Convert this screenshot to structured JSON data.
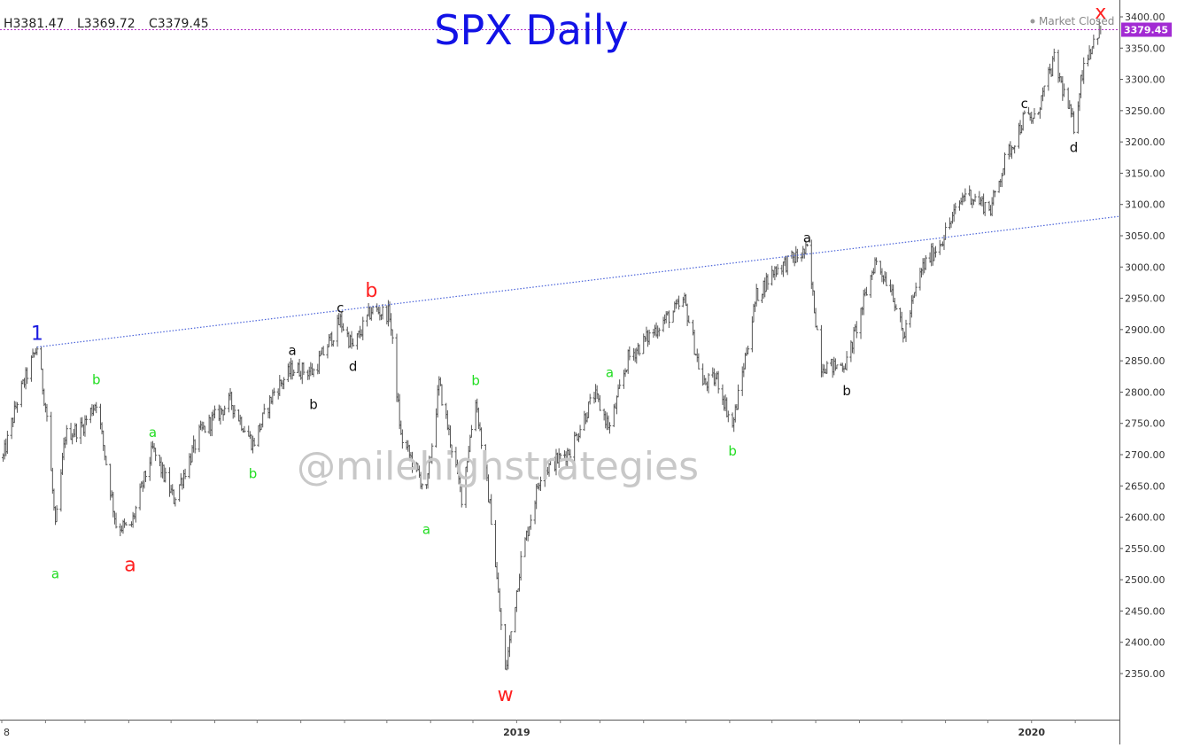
{
  "ohlc_readout": {
    "high": "H3381.47",
    "low": "L3369.72",
    "close": "C3379.45"
  },
  "status": "Market Closed",
  "watermark": "@milehighstrategies",
  "colors": {
    "title": "#1212e6",
    "bar": "#555555",
    "trendline": "#4a63d9",
    "price_line": "#b42fc4",
    "price_tag": "#a22bd3",
    "wave_red": "#ff2020",
    "wave_green": "#22dd22",
    "wave_black": "#111111",
    "wave_blue": "#1a1ae0",
    "watermark": "#c8c8c8"
  },
  "chart_data": {
    "type": "line",
    "title": "SPX Daily",
    "y_ticks": [
      "2350.00",
      "2400.00",
      "2450.00",
      "2500.00",
      "2550.00",
      "2600.00",
      "2650.00",
      "2700.00",
      "2750.00",
      "2800.00",
      "2850.00",
      "2900.00",
      "2950.00",
      "3000.00",
      "3050.00",
      "3100.00",
      "3150.00",
      "3200.00",
      "3250.00",
      "3300.00",
      "3350.00",
      "3400.00"
    ],
    "ylim": [
      2320,
      3425
    ],
    "x_range": [
      "2018-01-01",
      "2020-02-21"
    ],
    "x_ticks": [
      {
        "label": "8",
        "date": "2018-01-01"
      },
      {
        "label": "2019",
        "date": "2019-01-01"
      },
      {
        "label": "2020",
        "date": "2020-01-01"
      }
    ],
    "last_price": {
      "label": "3379.45",
      "value": 3379.45
    },
    "series": [
      {
        "style": "ohlc-bars",
        "points": [
          {
            "x": "2018-01-02",
            "y": 2695
          },
          {
            "x": "2018-01-12",
            "y": 2786
          },
          {
            "x": "2018-01-26",
            "y": 2872
          },
          {
            "x": "2018-02-02",
            "y": 2762
          },
          {
            "x": "2018-02-08",
            "y": 2581
          },
          {
            "x": "2018-02-15",
            "y": 2731
          },
          {
            "x": "2018-02-27",
            "y": 2744
          },
          {
            "x": "2018-03-09",
            "y": 2786
          },
          {
            "x": "2018-03-23",
            "y": 2588
          },
          {
            "x": "2018-04-02",
            "y": 2581
          },
          {
            "x": "2018-04-18",
            "y": 2708
          },
          {
            "x": "2018-05-03",
            "y": 2629
          },
          {
            "x": "2018-05-21",
            "y": 2733
          },
          {
            "x": "2018-06-12",
            "y": 2786
          },
          {
            "x": "2018-06-28",
            "y": 2717
          },
          {
            "x": "2018-07-13",
            "y": 2801
          },
          {
            "x": "2018-07-26",
            "y": 2837
          },
          {
            "x": "2018-08-10",
            "y": 2833
          },
          {
            "x": "2018-08-29",
            "y": 2914
          },
          {
            "x": "2018-09-07",
            "y": 2871
          },
          {
            "x": "2018-09-20",
            "y": 2931
          },
          {
            "x": "2018-10-03",
            "y": 2925
          },
          {
            "x": "2018-10-11",
            "y": 2728
          },
          {
            "x": "2018-10-29",
            "y": 2641
          },
          {
            "x": "2018-11-07",
            "y": 2813
          },
          {
            "x": "2018-11-23",
            "y": 2633
          },
          {
            "x": "2018-12-03",
            "y": 2790
          },
          {
            "x": "2018-12-14",
            "y": 2600
          },
          {
            "x": "2018-12-24",
            "y": 2351
          },
          {
            "x": "2019-01-04",
            "y": 2531
          },
          {
            "x": "2019-01-18",
            "y": 2670
          },
          {
            "x": "2019-02-08",
            "y": 2708
          },
          {
            "x": "2019-02-25",
            "y": 2796
          },
          {
            "x": "2019-03-08",
            "y": 2743
          },
          {
            "x": "2019-03-21",
            "y": 2854
          },
          {
            "x": "2019-04-12",
            "y": 2907
          },
          {
            "x": "2019-04-30",
            "y": 2945
          },
          {
            "x": "2019-05-13",
            "y": 2812
          },
          {
            "x": "2019-05-23",
            "y": 2822
          },
          {
            "x": "2019-06-03",
            "y": 2744
          },
          {
            "x": "2019-06-20",
            "y": 2954
          },
          {
            "x": "2019-07-03",
            "y": 2996
          },
          {
            "x": "2019-07-26",
            "y": 3026
          },
          {
            "x": "2019-08-05",
            "y": 2844
          },
          {
            "x": "2019-08-14",
            "y": 2840
          },
          {
            "x": "2019-08-23",
            "y": 2847
          },
          {
            "x": "2019-09-12",
            "y": 3009
          },
          {
            "x": "2019-09-24",
            "y": 2966
          },
          {
            "x": "2019-10-02",
            "y": 2887
          },
          {
            "x": "2019-10-15",
            "y": 2996
          },
          {
            "x": "2019-10-30",
            "y": 3046
          },
          {
            "x": "2019-11-15",
            "y": 3120
          },
          {
            "x": "2019-12-03",
            "y": 3093
          },
          {
            "x": "2019-12-13",
            "y": 3169
          },
          {
            "x": "2019-12-27",
            "y": 3240
          },
          {
            "x": "2020-01-03",
            "y": 3235
          },
          {
            "x": "2020-01-17",
            "y": 3330
          },
          {
            "x": "2020-01-31",
            "y": 3225
          },
          {
            "x": "2020-02-07",
            "y": 3327
          },
          {
            "x": "2020-02-19",
            "y": 3386
          }
        ]
      }
    ],
    "trendlines": [
      {
        "style": "dotted",
        "from": {
          "x": "2018-01-26",
          "y": 2872
        },
        "to": {
          "x": "2020-02-21",
          "y": 3081
        }
      }
    ],
    "annotations": [
      {
        "text": "1",
        "tone": "blue",
        "size": "large",
        "x": "2018-01-26",
        "y": 2872,
        "pos": "above"
      },
      {
        "text": "a",
        "tone": "green",
        "size": "small",
        "x": "2018-02-08",
        "y": 2532,
        "pos": "below"
      },
      {
        "text": "b",
        "tone": "green",
        "size": "small",
        "x": "2018-03-09",
        "y": 2801,
        "pos": "above"
      },
      {
        "text": "a",
        "tone": "red",
        "size": "large",
        "x": "2018-04-02",
        "y": 2553,
        "pos": "below"
      },
      {
        "text": "a",
        "tone": "green",
        "size": "small",
        "x": "2018-04-18",
        "y": 2717,
        "pos": "above"
      },
      {
        "text": "b",
        "tone": "green",
        "size": "small",
        "x": "2018-06-28",
        "y": 2692,
        "pos": "below"
      },
      {
        "text": "a",
        "tone": "black",
        "size": "small",
        "x": "2018-07-26",
        "y": 2848,
        "pos": "above"
      },
      {
        "text": "b",
        "tone": "black",
        "size": "small",
        "x": "2018-08-10",
        "y": 2803,
        "pos": "below"
      },
      {
        "text": "c",
        "tone": "black",
        "size": "small",
        "x": "2018-08-29",
        "y": 2916,
        "pos": "above"
      },
      {
        "text": "d",
        "tone": "black",
        "size": "small",
        "x": "2018-09-07",
        "y": 2864,
        "pos": "below"
      },
      {
        "text": "b",
        "tone": "red",
        "size": "large",
        "x": "2018-09-20",
        "y": 2941,
        "pos": "above"
      },
      {
        "text": "a",
        "tone": "green",
        "size": "small",
        "x": "2018-10-29",
        "y": 2603,
        "pos": "below"
      },
      {
        "text": "b",
        "tone": "green",
        "size": "small",
        "x": "2018-12-03",
        "y": 2800,
        "pos": "above"
      },
      {
        "text": "w",
        "tone": "red",
        "size": "large",
        "x": "2018-12-24",
        "y": 2346,
        "pos": "below"
      },
      {
        "text": "a",
        "tone": "green",
        "size": "small",
        "x": "2019-03-08",
        "y": 2813,
        "pos": "above"
      },
      {
        "text": "b",
        "tone": "green",
        "size": "small",
        "x": "2019-06-03",
        "y": 2728,
        "pos": "below"
      },
      {
        "text": "a",
        "tone": "black",
        "size": "small",
        "x": "2019-07-26",
        "y": 3028,
        "pos": "above"
      },
      {
        "text": "b",
        "tone": "black",
        "size": "small",
        "x": "2019-08-23",
        "y": 2825,
        "pos": "below"
      },
      {
        "text": "c",
        "tone": "black",
        "size": "small",
        "x": "2019-12-27",
        "y": 3243,
        "pos": "above"
      },
      {
        "text": "d",
        "tone": "black",
        "size": "small",
        "x": "2020-01-31",
        "y": 3214,
        "pos": "below"
      },
      {
        "text": "x",
        "tone": "red",
        "size": "large",
        "x": "2020-02-19",
        "y": 3386,
        "pos": "above"
      }
    ]
  }
}
